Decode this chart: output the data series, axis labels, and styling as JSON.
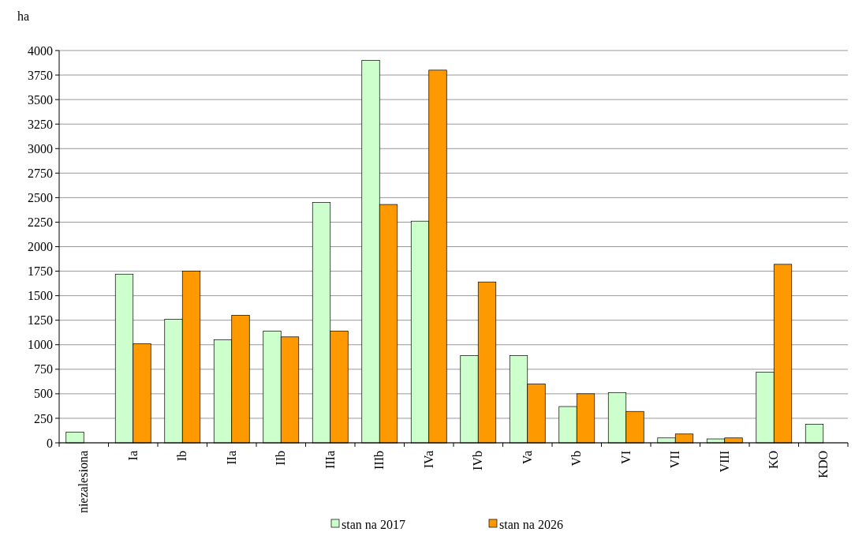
{
  "chart_data": {
    "type": "bar",
    "ylabel": "ha",
    "categories": [
      "niezalesiona",
      "Ia",
      "Ib",
      "IIa",
      "IIb",
      "IIIa",
      "IIIb",
      "IVa",
      "IVb",
      "Va",
      "Vb",
      "VI",
      "VII",
      "VIII",
      "KO",
      "KDO"
    ],
    "series": [
      {
        "name": "stan na 2017",
        "color": "#ccffcc",
        "values": [
          110,
          1720,
          1260,
          1050,
          1140,
          2450,
          3900,
          2260,
          890,
          890,
          370,
          510,
          50,
          40,
          720,
          190
        ]
      },
      {
        "name": "stan na 2026",
        "color": "#ff9900",
        "values": [
          null,
          1010,
          1750,
          1300,
          1080,
          1140,
          2430,
          3800,
          1640,
          600,
          500,
          320,
          90,
          50,
          1820,
          null
        ]
      }
    ],
    "ylim": [
      0,
      4000
    ],
    "yticks": [
      0,
      250,
      500,
      750,
      1000,
      1250,
      1500,
      1750,
      2000,
      2250,
      2500,
      2750,
      3000,
      3250,
      3500,
      3750,
      4000
    ],
    "grid": "y",
    "legend": "bottom"
  }
}
